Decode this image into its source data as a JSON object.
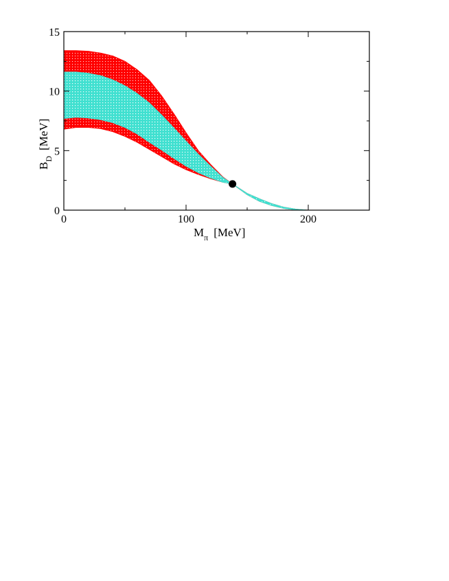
{
  "chart_data": {
    "type": "area",
    "xlabel": {
      "main": "M",
      "sub": "π",
      "unit": "[MeV]"
    },
    "ylabel": {
      "main": "B",
      "sub": "D",
      "unit": "[MeV]"
    },
    "xlim": [
      0,
      250
    ],
    "ylim": [
      0,
      15
    ],
    "x_ticks": [
      0,
      100,
      200
    ],
    "y_ticks": [
      0,
      5,
      10,
      15
    ],
    "x_minor_step": 50,
    "y_minor_step": 2.5,
    "grid": false,
    "colors": {
      "outer_band": "#ff0000",
      "inner_band": "#40e0d0",
      "point": "#000000"
    },
    "bands": [
      {
        "role": "outer",
        "x": [
          0,
          10,
          20,
          30,
          40,
          50,
          60,
          70,
          80,
          90,
          100,
          110,
          120,
          130,
          138,
          150,
          160,
          170,
          180,
          190,
          200
        ],
        "upper": [
          13.4,
          13.4,
          13.35,
          13.2,
          12.95,
          12.5,
          11.8,
          10.9,
          9.6,
          8.1,
          6.5,
          5.0,
          3.85,
          2.8,
          2.2,
          1.4,
          0.95,
          0.55,
          0.25,
          0.08,
          0.0
        ],
        "lower": [
          6.8,
          6.95,
          6.95,
          6.85,
          6.6,
          6.2,
          5.7,
          5.1,
          4.5,
          3.9,
          3.4,
          3.0,
          2.65,
          2.35,
          2.2,
          1.3,
          0.75,
          0.4,
          0.15,
          0.03,
          0.0
        ]
      },
      {
        "role": "inner",
        "x": [
          0,
          10,
          20,
          30,
          40,
          50,
          60,
          70,
          80,
          90,
          100,
          110,
          120,
          130,
          138,
          150,
          160,
          170,
          180,
          190,
          200
        ],
        "upper": [
          11.6,
          11.6,
          11.5,
          11.3,
          10.95,
          10.45,
          9.8,
          9.0,
          8.0,
          6.9,
          5.8,
          4.7,
          3.7,
          2.75,
          2.2,
          1.4,
          0.95,
          0.55,
          0.25,
          0.08,
          0.0
        ],
        "lower": [
          7.7,
          7.8,
          7.75,
          7.6,
          7.35,
          6.95,
          6.4,
          5.7,
          5.05,
          4.35,
          3.7,
          3.15,
          2.7,
          2.35,
          2.2,
          1.3,
          0.75,
          0.4,
          0.15,
          0.03,
          0.0
        ]
      }
    ],
    "points": [
      {
        "x": 138,
        "y": 2.2
      }
    ]
  }
}
